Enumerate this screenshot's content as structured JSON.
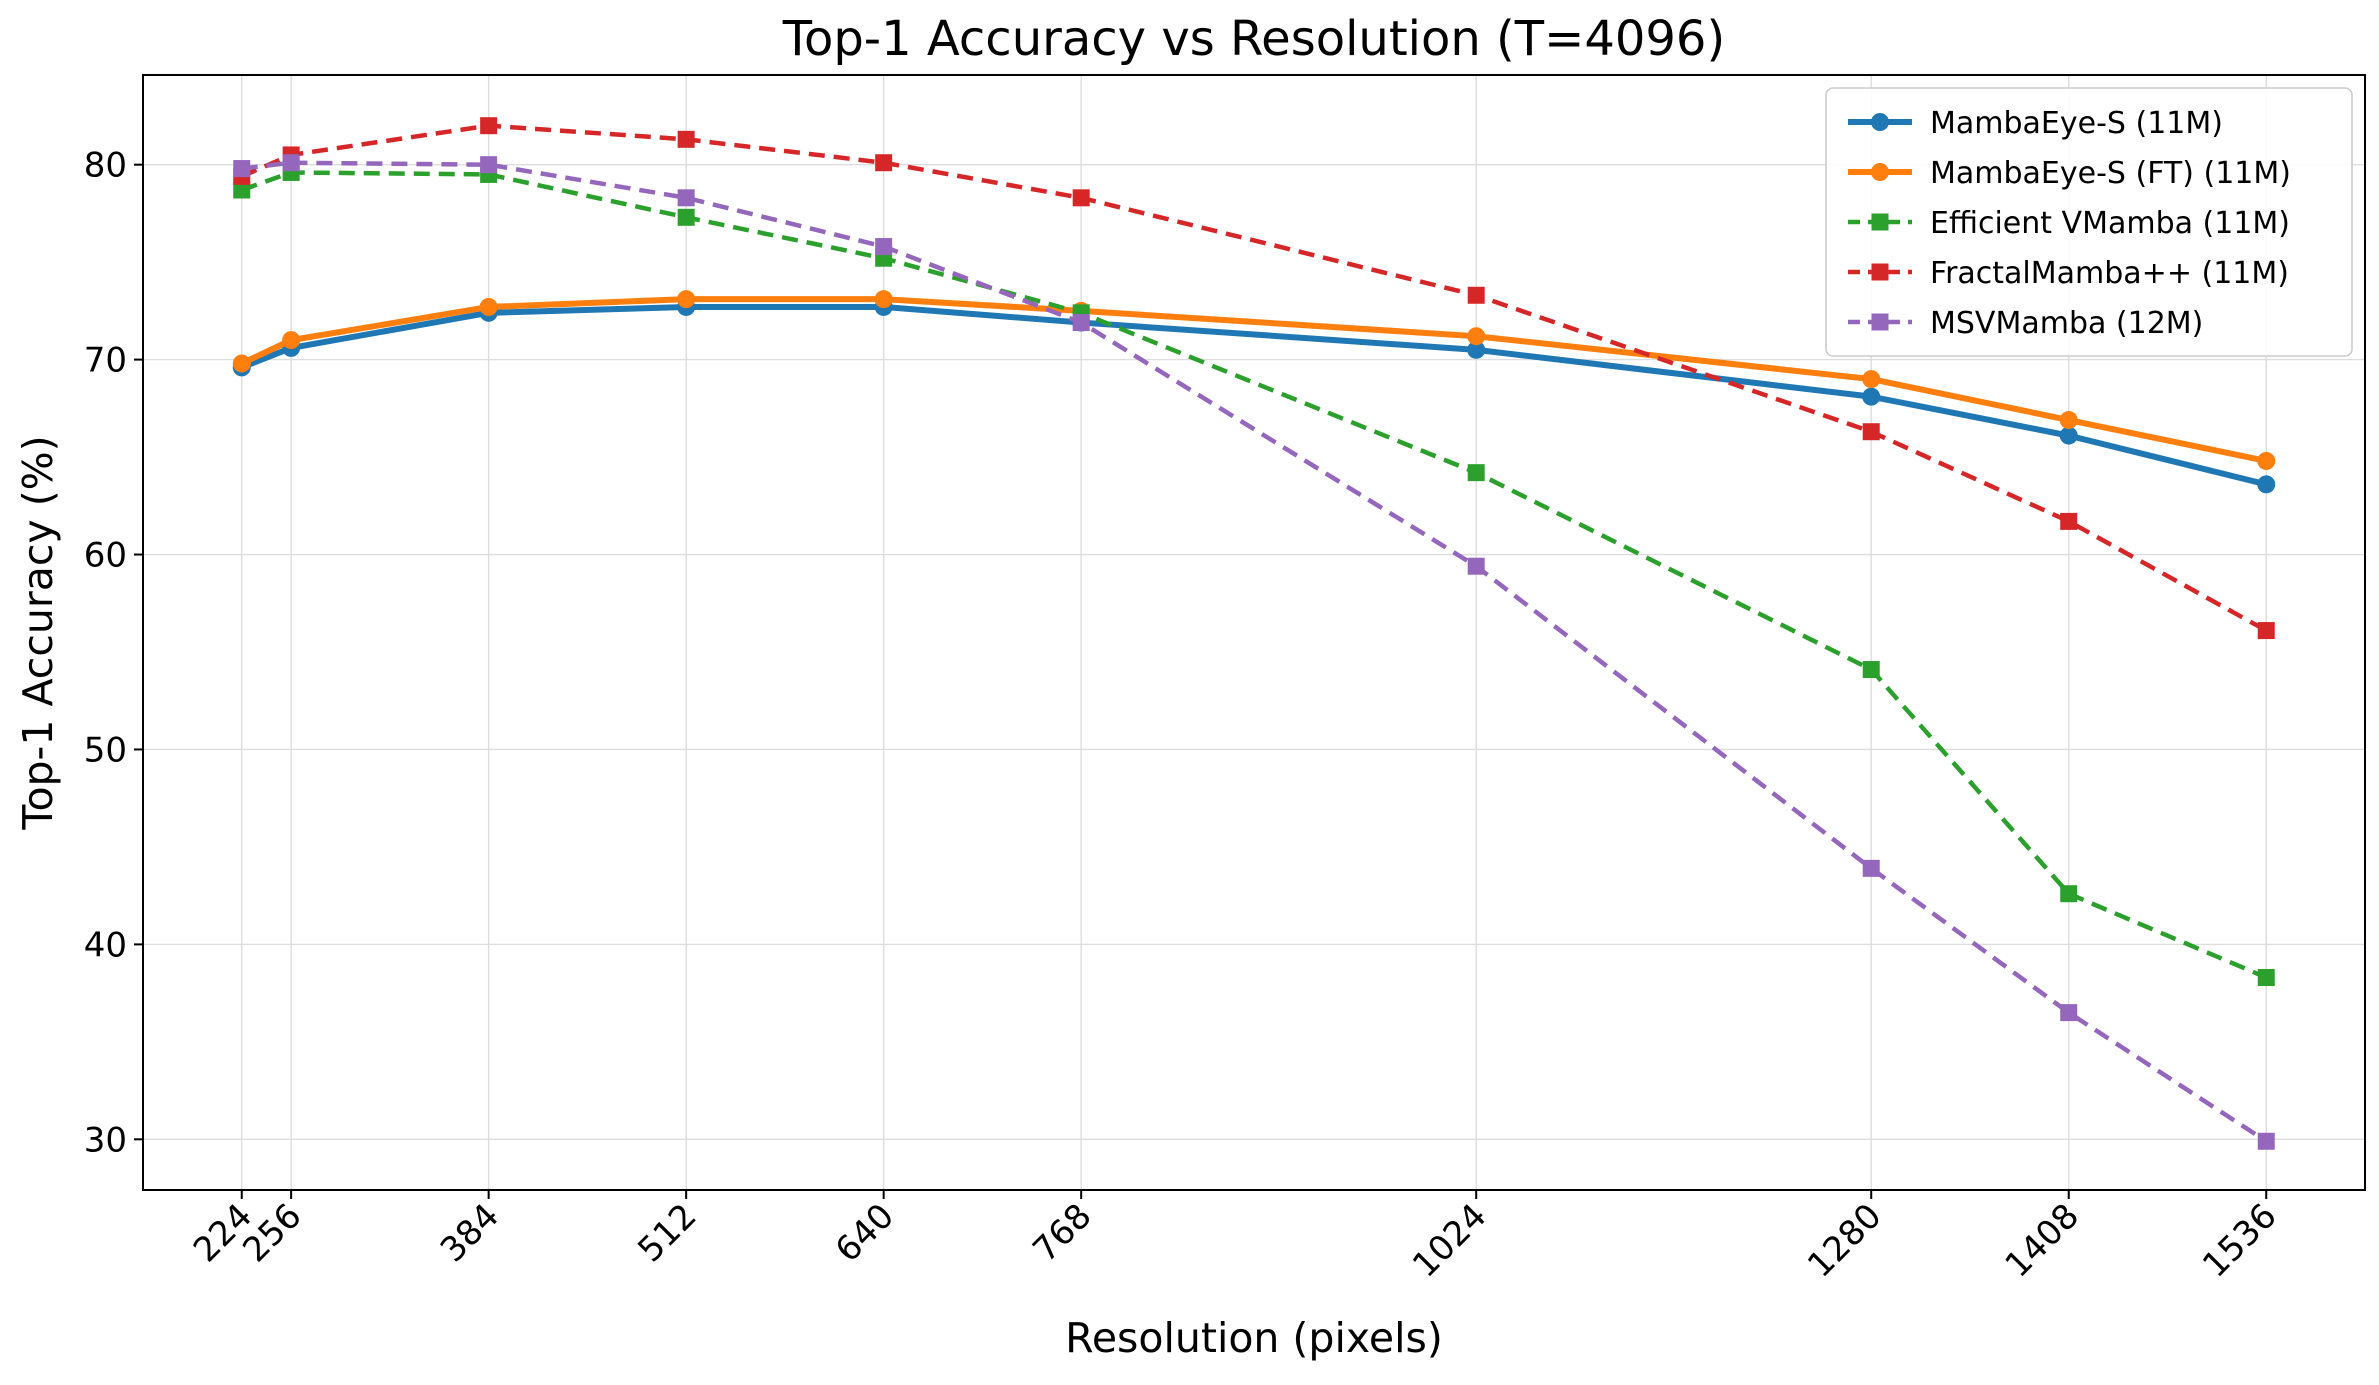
{
  "chart_data": {
    "type": "line",
    "title": "Top-1 Accuracy vs Resolution (T=4096)",
    "xlabel": "Resolution (pixels)",
    "ylabel": "Top-1 Accuracy (%)",
    "x": [
      224,
      256,
      384,
      512,
      640,
      768,
      1024,
      1280,
      1408,
      1536
    ],
    "x_tick_labels": [
      "224",
      "256",
      "384",
      "512",
      "640",
      "768",
      "1024",
      "1280",
      "1408",
      "1536"
    ],
    "xlim": [
      160,
      1600
    ],
    "ylim": [
      27.4,
      84.6
    ],
    "y_ticks": [
      30,
      40,
      50,
      60,
      70,
      80
    ],
    "y_tick_labels": [
      "30",
      "40",
      "50",
      "60",
      "70",
      "80"
    ],
    "grid": true,
    "legend_position": "top-right",
    "series": [
      {
        "name": "MambaEye-S (11M)",
        "color": "#1f77b4",
        "marker": "circle",
        "line": "solid",
        "values": [
          69.6,
          70.6,
          72.4,
          72.7,
          72.7,
          71.9,
          70.5,
          68.1,
          66.1,
          63.6
        ]
      },
      {
        "name": "MambaEye-S (FT) (11M)",
        "color": "#ff7f0e",
        "marker": "circle",
        "line": "solid",
        "values": [
          69.8,
          71.0,
          72.7,
          73.1,
          73.1,
          72.5,
          71.2,
          69.0,
          66.9,
          64.8
        ]
      },
      {
        "name": "Efficient VMamba (11M)",
        "color": "#2ca02c",
        "marker": "square",
        "line": "dashed",
        "values": [
          78.7,
          79.6,
          79.5,
          77.3,
          75.2,
          72.4,
          64.2,
          54.1,
          42.6,
          38.3
        ]
      },
      {
        "name": "FractalMamba++ (11M)",
        "color": "#d62728",
        "marker": "square",
        "line": "dashed",
        "values": [
          79.4,
          80.5,
          82.0,
          81.3,
          80.1,
          78.3,
          73.3,
          66.3,
          61.7,
          56.1
        ]
      },
      {
        "name": "MSVMamba (12M)",
        "color": "#9467bd",
        "marker": "square",
        "line": "dashed",
        "values": [
          79.8,
          80.1,
          80.0,
          78.3,
          75.8,
          71.9,
          59.4,
          43.9,
          36.5,
          29.9
        ]
      }
    ]
  }
}
